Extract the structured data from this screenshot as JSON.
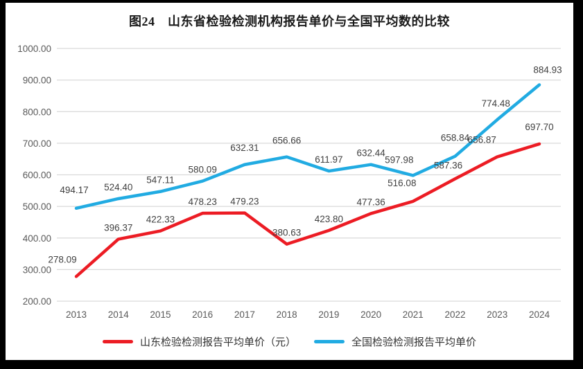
{
  "title": "图24　山东省检验检测机构报告单价与全国平均数的比较",
  "colors": {
    "frame": "#000000",
    "background": "#ffffff",
    "gridline": "#d9d9d9",
    "axis_text": "#595959",
    "label_text": "#404040",
    "title_text": "#1a1a1a",
    "shandong_red": "#ec1c24",
    "national_blue": "#21abe2"
  },
  "chart_data": {
    "type": "line",
    "title": "图24　山东省检验检测机构报告单价与全国平均数的比较",
    "categories": [
      "2013",
      "2014",
      "2015",
      "2016",
      "2017",
      "2018",
      "2019",
      "2020",
      "2021",
      "2022",
      "2023",
      "2024"
    ],
    "series": [
      {
        "name": "山东检验检测报告平均单价（元）",
        "color": "#ec1c24",
        "values": [
          278.09,
          396.37,
          422.33,
          478.23,
          479.23,
          380.63,
          423.8,
          477.36,
          516.08,
          587.36,
          656.87,
          697.7
        ]
      },
      {
        "name": "全国检验检测报告平均单价",
        "color": "#21abe2",
        "values": [
          494.17,
          524.4,
          547.11,
          580.09,
          632.31,
          656.66,
          611.97,
          632.44,
          597.98,
          658.84,
          774.48,
          884.93
        ]
      }
    ],
    "xlabel": "",
    "ylabel": "",
    "ylim": [
      200,
      1000
    ],
    "y_ticks": [
      "1000.00",
      "900.00",
      "800.00",
      "700.00",
      "600.00",
      "500.00",
      "400.00",
      "300.00",
      "200.00"
    ],
    "grid": "horizontal",
    "legend_position": "bottom",
    "data_labels": true,
    "label_format": "0.00"
  }
}
